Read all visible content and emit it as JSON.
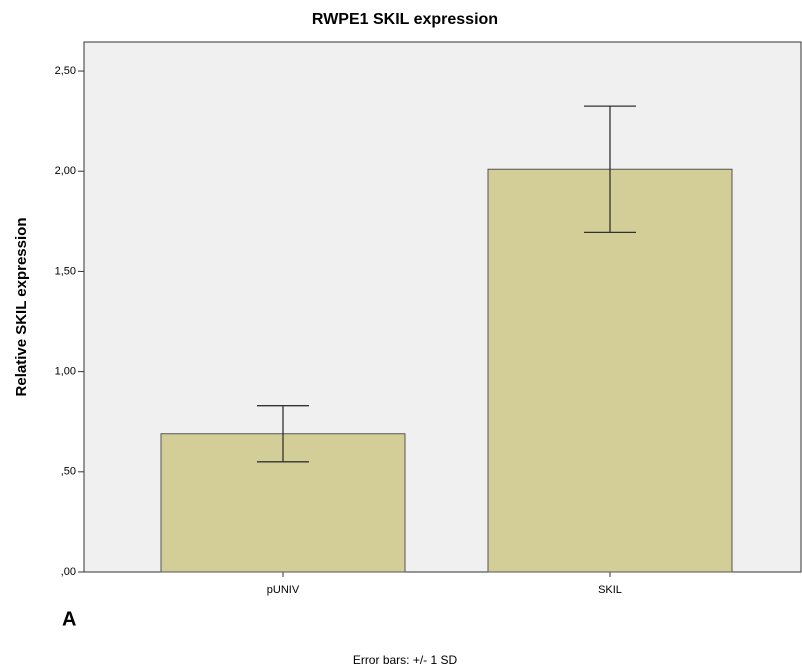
{
  "chart_data": {
    "type": "bar",
    "title": "RWPE1 SKIL expression",
    "y_label": "Relative SKIL expression",
    "categories": [
      "pUNIV",
      "SKIL"
    ],
    "values": [
      0.69,
      2.01
    ],
    "errors": [
      0.14,
      0.315
    ],
    "color": "#d3ce97",
    "ylim": [
      0,
      2.645
    ],
    "yticks": [
      {
        "value": 0,
        "label": ",00"
      },
      {
        "value": 0.5,
        "label": ",50"
      },
      {
        "value": 1,
        "label": "1,00"
      },
      {
        "value": 1.5,
        "label": "1,50"
      },
      {
        "value": 2,
        "label": "2,00"
      },
      {
        "value": 2.5,
        "label": "2,50"
      }
    ],
    "panel_label": "A",
    "footnote": "Error bars: +/- 1 SD"
  }
}
